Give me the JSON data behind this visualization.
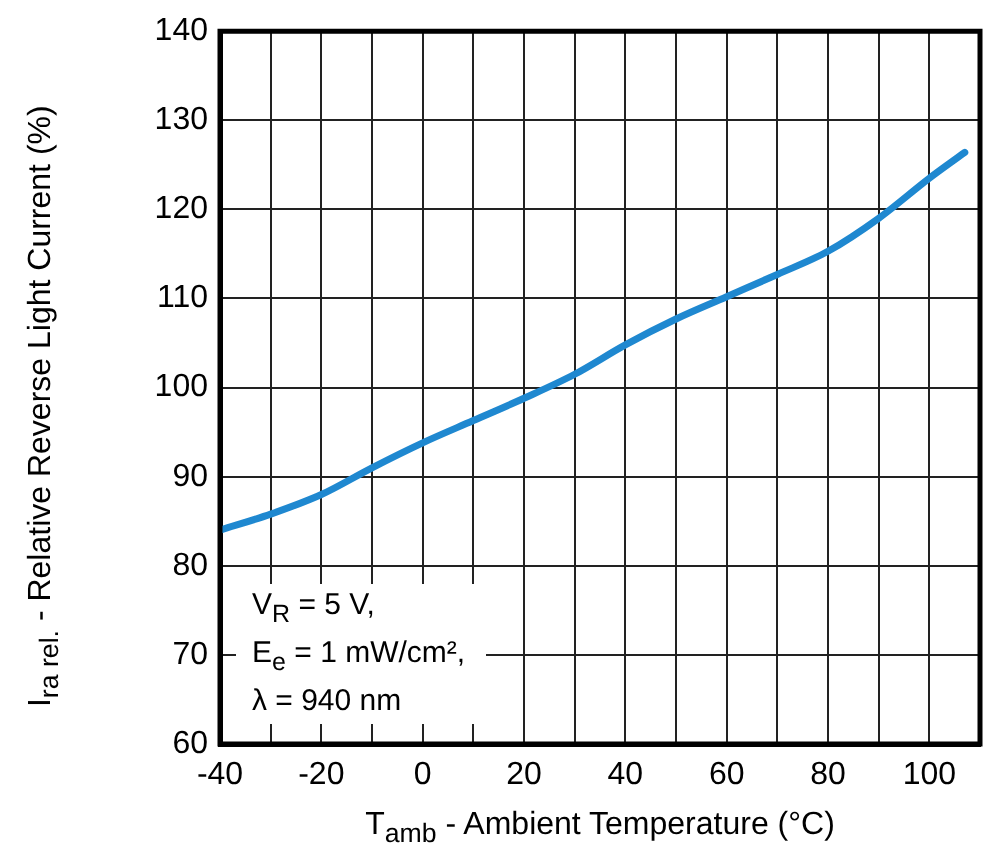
{
  "chart_data": {
    "type": "line",
    "xlabel": "T$_{amb}$ - Ambient Temperature (°C)",
    "ylabel": "I$_{ra rel.}$ - Relative Reverse Light Current (%)",
    "annotations": [
      "V$_{R}$ = 5 V,\nE$_{e}$ = 1 mW/cm², \nλ = 940 nm"
    ],
    "x": [
      -40,
      -30,
      -20,
      -10,
      0,
      10,
      20,
      30,
      40,
      50,
      60,
      70,
      80,
      90,
      100,
      107
    ],
    "series": [
      {
        "color": "#1f88d0",
        "values": [
          84,
          85.8,
          88,
          91,
          93.8,
          96.3,
          98.8,
          101.5,
          104.8,
          107.7,
          110.2,
          112.7,
          115.3,
          119,
          123.5,
          126.4
        ]
      }
    ],
    "xlim": [
      -40,
      110
    ],
    "xticks": [
      -40,
      {
        "value": -30,
        "label": null
      },
      -20,
      {
        "value": -10,
        "label": null
      },
      0,
      {
        "value": 10,
        "label": null
      },
      20,
      {
        "value": 30,
        "label": null
      },
      40,
      {
        "value": 50,
        "label": null
      },
      60,
      {
        "value": 70,
        "label": null
      },
      80,
      {
        "value": 90,
        "label": null
      },
      100,
      {
        "value": 110,
        "label": null
      }
    ],
    "ylim": [
      60,
      140
    ],
    "yticks": [
      60,
      70,
      80,
      90,
      100,
      110,
      120,
      130,
      140
    ],
    "grid": true,
    "legend": false,
    "marker": "none",
    "line_style": "solid"
  }
}
